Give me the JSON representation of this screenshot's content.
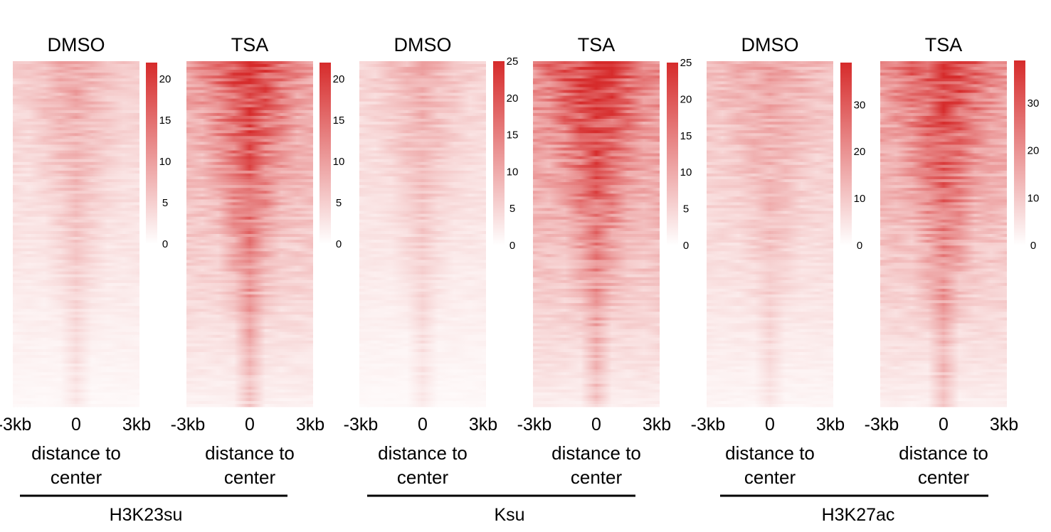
{
  "chart_data": [
    {
      "type": "heatmap",
      "title": "DMSO",
      "group": "H3K23su",
      "x_ticks": [
        "-3kb",
        "0",
        "3kb"
      ],
      "xlabel": [
        "distance to",
        "center"
      ],
      "colorbar": {
        "ticks": [
          0,
          5,
          10,
          15,
          20
        ],
        "range": [
          0,
          22
        ],
        "colors": [
          "#ffffff",
          "#d62b2b"
        ]
      },
      "profile": {
        "peak_center": 0,
        "signal_level": "low",
        "top_intensity": 0.42,
        "background": 0.22
      }
    },
    {
      "type": "heatmap",
      "title": "TSA",
      "group": "H3K23su",
      "x_ticks": [
        "-3kb",
        "0",
        "3kb"
      ],
      "xlabel": [
        "distance to",
        "center"
      ],
      "colorbar": {
        "ticks": [
          0,
          5,
          10,
          15,
          20
        ],
        "range": [
          0,
          22
        ],
        "colors": [
          "#ffffff",
          "#d62b2b"
        ]
      },
      "profile": {
        "peak_center": 0,
        "signal_level": "high",
        "top_intensity": 0.95,
        "background": 0.45
      }
    },
    {
      "type": "heatmap",
      "title": "DMSO",
      "group": "Ksu",
      "x_ticks": [
        "-3kb",
        "0",
        "3kb"
      ],
      "xlabel": [
        "distance to",
        "center"
      ],
      "colorbar": {
        "ticks": [
          0,
          5,
          10,
          15,
          20,
          25
        ],
        "range": [
          0,
          25
        ],
        "colors": [
          "#ffffff",
          "#d62b2b"
        ]
      },
      "profile": {
        "peak_center": 0,
        "signal_level": "low",
        "top_intensity": 0.38,
        "background": 0.2
      }
    },
    {
      "type": "heatmap",
      "title": "TSA",
      "group": "Ksu",
      "x_ticks": [
        "-3kb",
        "0",
        "3kb"
      ],
      "xlabel": [
        "distance to",
        "center"
      ],
      "colorbar": {
        "ticks": [
          0,
          5,
          10,
          15,
          20,
          25
        ],
        "range": [
          0,
          25
        ],
        "colors": [
          "#ffffff",
          "#d62b2b"
        ]
      },
      "profile": {
        "peak_center": 0,
        "signal_level": "high",
        "top_intensity": 1.0,
        "background": 0.55
      }
    },
    {
      "type": "heatmap",
      "title": "DMSO",
      "group": "H3K27ac",
      "x_ticks": [
        "-3kb",
        "0",
        "3kb"
      ],
      "xlabel": [
        "distance to",
        "center"
      ],
      "colorbar": {
        "ticks": [
          0,
          10,
          20,
          30
        ],
        "range": [
          0,
          39
        ],
        "colors": [
          "#ffffff",
          "#d62b2b"
        ]
      },
      "profile": {
        "peak_center": 0,
        "signal_level": "medium",
        "top_intensity": 0.45,
        "background": 0.3
      }
    },
    {
      "type": "heatmap",
      "title": "TSA",
      "group": "H3K27ac",
      "x_ticks": [
        "-3kb",
        "0",
        "3kb"
      ],
      "xlabel": [
        "distance to",
        "center"
      ],
      "colorbar": {
        "ticks": [
          0,
          10,
          20,
          30
        ],
        "range": [
          0,
          39
        ],
        "colors": [
          "#ffffff",
          "#d62b2b"
        ]
      },
      "profile": {
        "peak_center": 0,
        "signal_level": "high",
        "top_intensity": 0.95,
        "background": 0.5
      }
    }
  ],
  "groups": [
    "H3K23su",
    "Ksu",
    "H3K27ac"
  ],
  "colors": {
    "high": "#d62b2b",
    "low": "#ffffff"
  }
}
